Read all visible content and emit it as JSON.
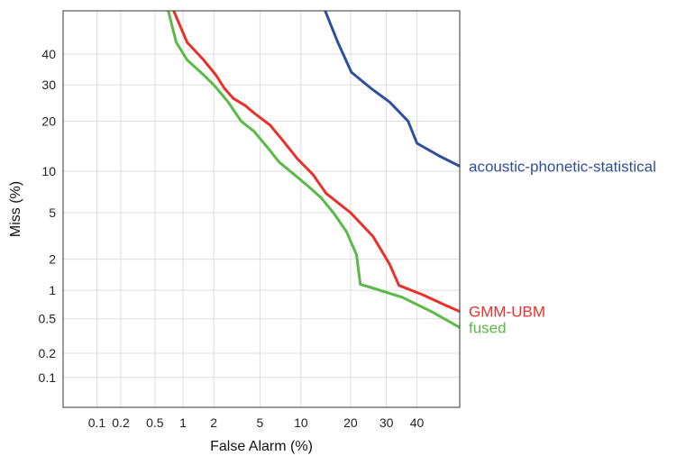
{
  "chart_data": {
    "type": "line",
    "subtype": "DET curve",
    "scale": "normal-deviate (probit) on both axes",
    "xlabel": "False Alarm (%)",
    "ylabel": "Miss (%)",
    "xlim": [
      0.035,
      55
    ],
    "ylim": [
      0.04,
      55
    ],
    "xticks": [
      0.1,
      0.2,
      0.5,
      1,
      2,
      5,
      10,
      20,
      30,
      40
    ],
    "xtick_labels": [
      "0.1",
      "0.2",
      "0.5",
      "1",
      "2",
      "5",
      "10",
      "20",
      "30",
      "40"
    ],
    "yticks": [
      0.1,
      0.2,
      0.5,
      1,
      2,
      5,
      10,
      20,
      30,
      40
    ],
    "ytick_labels": [
      "0.1",
      "0.2",
      "0.5",
      "1",
      "2",
      "5",
      "10",
      "20",
      "30",
      "40"
    ],
    "grid": true,
    "legend": "labels at right end of each curve",
    "series": [
      {
        "name": "acoustic-phonetic-statistical",
        "color": "#2e4fa0",
        "x": [
          14.3,
          17.0,
          20.2,
          25.4,
          31.0,
          37.0,
          40.0,
          48.0,
          55.0
        ],
        "y": [
          55.0,
          44.0,
          34.0,
          29.0,
          25.0,
          20.0,
          15.0,
          12.5,
          10.8
        ]
      },
      {
        "name": "GMM-UBM",
        "color": "#e8312a",
        "x": [
          0.8,
          1.1,
          1.6,
          2.1,
          2.5,
          3.0,
          3.8,
          4.5,
          6.0,
          7.5,
          9.5,
          12.0,
          14.5,
          20.0,
          26.0,
          31.0,
          34.0,
          42.0,
          50.0,
          55.0
        ],
        "y": [
          55.0,
          44.0,
          38.0,
          33.0,
          29.0,
          26.0,
          24.0,
          22.0,
          19.0,
          15.5,
          12.0,
          9.5,
          7.0,
          5.0,
          3.2,
          1.8,
          1.12,
          0.9,
          0.7,
          0.6
        ]
      },
      {
        "name": "fused",
        "color": "#5ab947",
        "x": [
          0.7,
          0.85,
          1.1,
          1.5,
          2.0,
          2.7,
          3.5,
          4.5,
          5.8,
          7.0,
          9.0,
          11.0,
          13.5,
          16.0,
          19.0,
          21.5,
          22.5,
          25.0,
          35.0,
          45.0,
          55.0
        ],
        "y": [
          55.0,
          44.0,
          38.0,
          34.0,
          30.0,
          25.0,
          20.0,
          17.5,
          14.0,
          11.5,
          9.5,
          8.0,
          6.5,
          5.0,
          3.5,
          2.2,
          1.15,
          1.08,
          0.85,
          0.6,
          0.4
        ]
      }
    ]
  }
}
